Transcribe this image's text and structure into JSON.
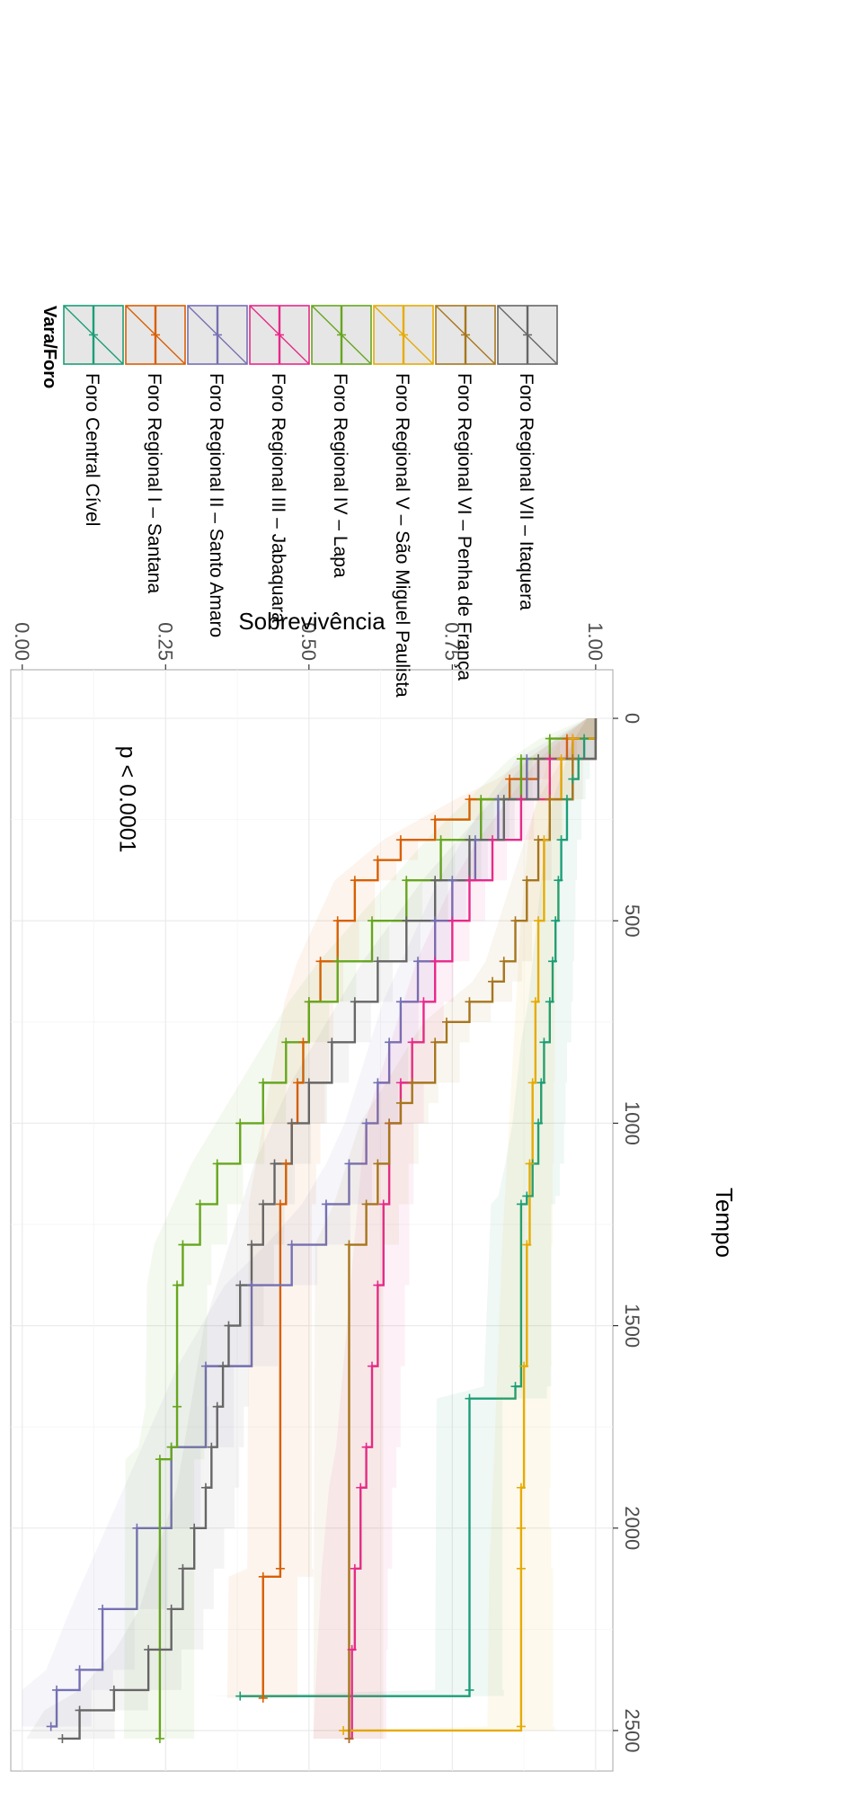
{
  "chart_data": {
    "type": "line",
    "xlabel": "Tempo",
    "ylabel": "Sobrevivência",
    "xlim": [
      -120,
      2600
    ],
    "ylim": [
      -0.02,
      1.03
    ],
    "x_ticks": [
      0,
      500,
      1000,
      1500,
      2000,
      2500
    ],
    "y_ticks": [
      1.0,
      0.75,
      0.5,
      0.25,
      0.0
    ],
    "y_tick_labels": [
      "1.00",
      "0.75",
      "0.50",
      "0.25",
      "0.00"
    ],
    "grid": true,
    "annotation": {
      "text": "p < 0.0001",
      "x": 200,
      "y": 0.17
    },
    "legend": {
      "title": "Vara/Foro",
      "placement": "right"
    },
    "series": [
      {
        "name": "Foro Central Cível",
        "color": "#1b9e77",
        "x": [
          0,
          50,
          100,
          150,
          200,
          300,
          400,
          500,
          600,
          700,
          800,
          900,
          1000,
          1100,
          1180,
          1200,
          1650,
          1680,
          2400,
          2415
        ],
        "y": [
          1.0,
          0.98,
          0.97,
          0.96,
          0.95,
          0.94,
          0.935,
          0.93,
          0.925,
          0.92,
          0.91,
          0.905,
          0.9,
          0.89,
          0.88,
          0.87,
          0.86,
          0.78,
          0.78,
          0.38
        ]
      },
      {
        "name": "Foro Regional I – Santana",
        "color": "#d95f02",
        "x": [
          0,
          50,
          100,
          150,
          200,
          250,
          300,
          350,
          400,
          500,
          600,
          700,
          800,
          900,
          1000,
          1100,
          1200,
          2100,
          2120,
          2420
        ],
        "y": [
          1.0,
          0.95,
          0.9,
          0.85,
          0.78,
          0.72,
          0.66,
          0.62,
          0.58,
          0.55,
          0.52,
          0.5,
          0.49,
          0.48,
          0.47,
          0.46,
          0.45,
          0.45,
          0.42,
          0.42
        ]
      },
      {
        "name": "Foro Regional II – Santo Amaro",
        "color": "#7570b3",
        "x": [
          0,
          100,
          200,
          300,
          400,
          500,
          600,
          700,
          800,
          900,
          1000,
          1100,
          1200,
          1300,
          1400,
          1600,
          1800,
          2000,
          2200,
          2350,
          2400,
          2490
        ],
        "y": [
          1.0,
          0.88,
          0.83,
          0.79,
          0.75,
          0.72,
          0.69,
          0.66,
          0.64,
          0.62,
          0.6,
          0.57,
          0.53,
          0.47,
          0.4,
          0.32,
          0.26,
          0.2,
          0.14,
          0.1,
          0.06,
          0.05
        ]
      },
      {
        "name": "Foro Regional III – Jabaquara",
        "color": "#e7298a",
        "x": [
          0,
          50,
          100,
          200,
          300,
          400,
          500,
          600,
          700,
          800,
          900,
          1000,
          1200,
          1400,
          1600,
          1800,
          1900,
          2100,
          2300,
          2520
        ],
        "y": [
          1.0,
          0.96,
          0.92,
          0.87,
          0.82,
          0.78,
          0.75,
          0.72,
          0.7,
          0.68,
          0.66,
          0.64,
          0.63,
          0.62,
          0.61,
          0.6,
          0.59,
          0.58,
          0.575,
          0.57
        ]
      },
      {
        "name": "Foro Regional IV – Lapa",
        "color": "#66a61e",
        "x": [
          0,
          50,
          100,
          200,
          300,
          400,
          500,
          600,
          700,
          800,
          900,
          1000,
          1100,
          1200,
          1300,
          1400,
          1700,
          1800,
          1830,
          2520
        ],
        "y": [
          1.0,
          0.92,
          0.87,
          0.8,
          0.73,
          0.67,
          0.61,
          0.55,
          0.5,
          0.46,
          0.42,
          0.38,
          0.34,
          0.31,
          0.28,
          0.27,
          0.27,
          0.26,
          0.24,
          0.24
        ]
      },
      {
        "name": "Foro Regional V – São Miguel Paulista",
        "color": "#e6ab02",
        "x": [
          0,
          50,
          100,
          200,
          300,
          500,
          700,
          900,
          1100,
          1300,
          1600,
          1900,
          2000,
          2100,
          2490,
          2500
        ],
        "y": [
          1.0,
          0.96,
          0.94,
          0.92,
          0.91,
          0.9,
          0.895,
          0.89,
          0.885,
          0.88,
          0.875,
          0.87,
          0.87,
          0.87,
          0.87,
          0.56
        ]
      },
      {
        "name": "Foro Regional VI – Penha de França",
        "color": "#a6761d",
        "x": [
          0,
          100,
          200,
          300,
          400,
          500,
          600,
          650,
          700,
          750,
          800,
          900,
          950,
          1000,
          1100,
          1200,
          1300,
          2520
        ],
        "y": [
          1.0,
          0.96,
          0.92,
          0.9,
          0.88,
          0.86,
          0.84,
          0.82,
          0.78,
          0.74,
          0.72,
          0.68,
          0.66,
          0.64,
          0.62,
          0.6,
          0.57,
          0.57
        ]
      },
      {
        "name": "Foro Regional VII – Itaquera",
        "color": "#666666",
        "x": [
          0,
          100,
          200,
          300,
          400,
          500,
          600,
          700,
          800,
          900,
          1000,
          1100,
          1200,
          1300,
          1400,
          1500,
          1600,
          1700,
          1800,
          1900,
          2000,
          2100,
          2200,
          2300,
          2400,
          2450,
          2520
        ],
        "y": [
          1.0,
          0.9,
          0.84,
          0.78,
          0.72,
          0.67,
          0.62,
          0.58,
          0.54,
          0.5,
          0.47,
          0.44,
          0.42,
          0.4,
          0.38,
          0.36,
          0.35,
          0.34,
          0.33,
          0.32,
          0.3,
          0.28,
          0.26,
          0.22,
          0.16,
          0.1,
          0.07
        ]
      }
    ]
  }
}
